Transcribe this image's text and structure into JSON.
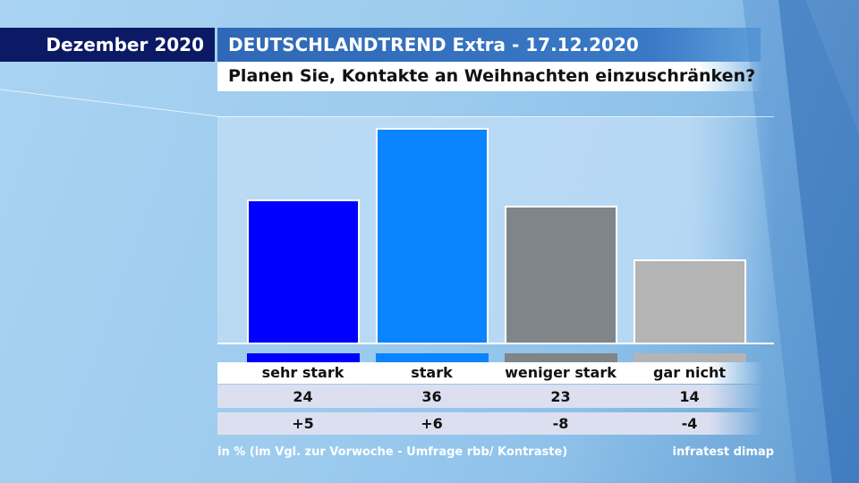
{
  "header": {
    "date": "Dezember 2020",
    "title": "DEUTSCHLANDTREND Extra - 17.12.2020",
    "question": "Planen Sie, Kontakte an Weihnachten einzuschränken?"
  },
  "footer": {
    "note": "in % (im Vgl. zur Vorwoche - Umfrage rbb/ Kontraste)",
    "source": "infratest dimap"
  },
  "colors": {
    "bars": [
      "#0000ff",
      "#0a84ff",
      "#7f8588",
      "#b4b4b4"
    ]
  },
  "chart_data": {
    "type": "bar",
    "categories": [
      "sehr stark",
      "stark",
      "weniger stark",
      "gar nicht"
    ],
    "values": [
      24,
      36,
      23,
      14
    ],
    "values_labels": [
      "24",
      "36",
      "23",
      "14"
    ],
    "changes": [
      "+5",
      "+6",
      "-8",
      "-4"
    ],
    "ylim": [
      0,
      38
    ],
    "grid": false,
    "legend": "none"
  }
}
